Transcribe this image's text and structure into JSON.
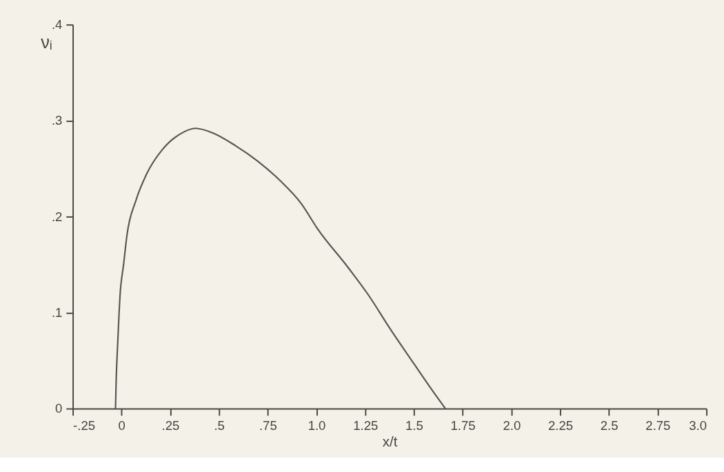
{
  "chart_data": {
    "type": "line",
    "xlabel": "x/t",
    "ylabel": "νᵢ",
    "x": [
      -0.031,
      -0.028,
      -0.019,
      -0.008,
      0.011,
      0.028,
      0.074,
      0.13,
      0.21,
      0.3,
      0.38,
      0.47,
      0.584,
      0.697,
      0.811,
      0.924,
      1.003,
      1.162,
      1.264,
      1.378,
      1.502,
      1.604,
      1.661
    ],
    "series": [
      {
        "color": "#5a5450",
        "values": [
          0,
          0.026,
          0.071,
          0.117,
          0.151,
          0.181,
          0.217,
          0.245,
          0.27,
          0.286,
          0.292,
          0.287,
          0.274,
          0.258,
          0.238,
          0.213,
          0.188,
          0.147,
          0.119,
          0.083,
          0.046,
          0.016,
          0
        ]
      }
    ],
    "xlim": [
      -0.25,
      3.0
    ],
    "xticks": [
      {
        "value": -0.25,
        "label": "-.25"
      },
      0,
      {
        "value": 0.25,
        "label": ".25"
      },
      {
        "value": 0.5,
        "label": ".5"
      },
      {
        "value": 0.75,
        "label": ".75"
      },
      {
        "value": 1.0,
        "label": "1.0"
      },
      1.25,
      1.5,
      1.75,
      {
        "value": 2.0,
        "label": "2.0"
      },
      2.25,
      2.5,
      2.75,
      {
        "value": 3.0,
        "label": "3.0"
      }
    ],
    "ylim": [
      0,
      0.4
    ],
    "yticks": [
      0,
      {
        "value": 0.1,
        "label": ".1"
      },
      {
        "value": 0.2,
        "label": ".2"
      },
      {
        "value": 0.3,
        "label": ".3"
      },
      {
        "value": 0.4,
        "label": ".4"
      }
    ],
    "grid": false,
    "marker": "none",
    "line_style": "solid"
  }
}
